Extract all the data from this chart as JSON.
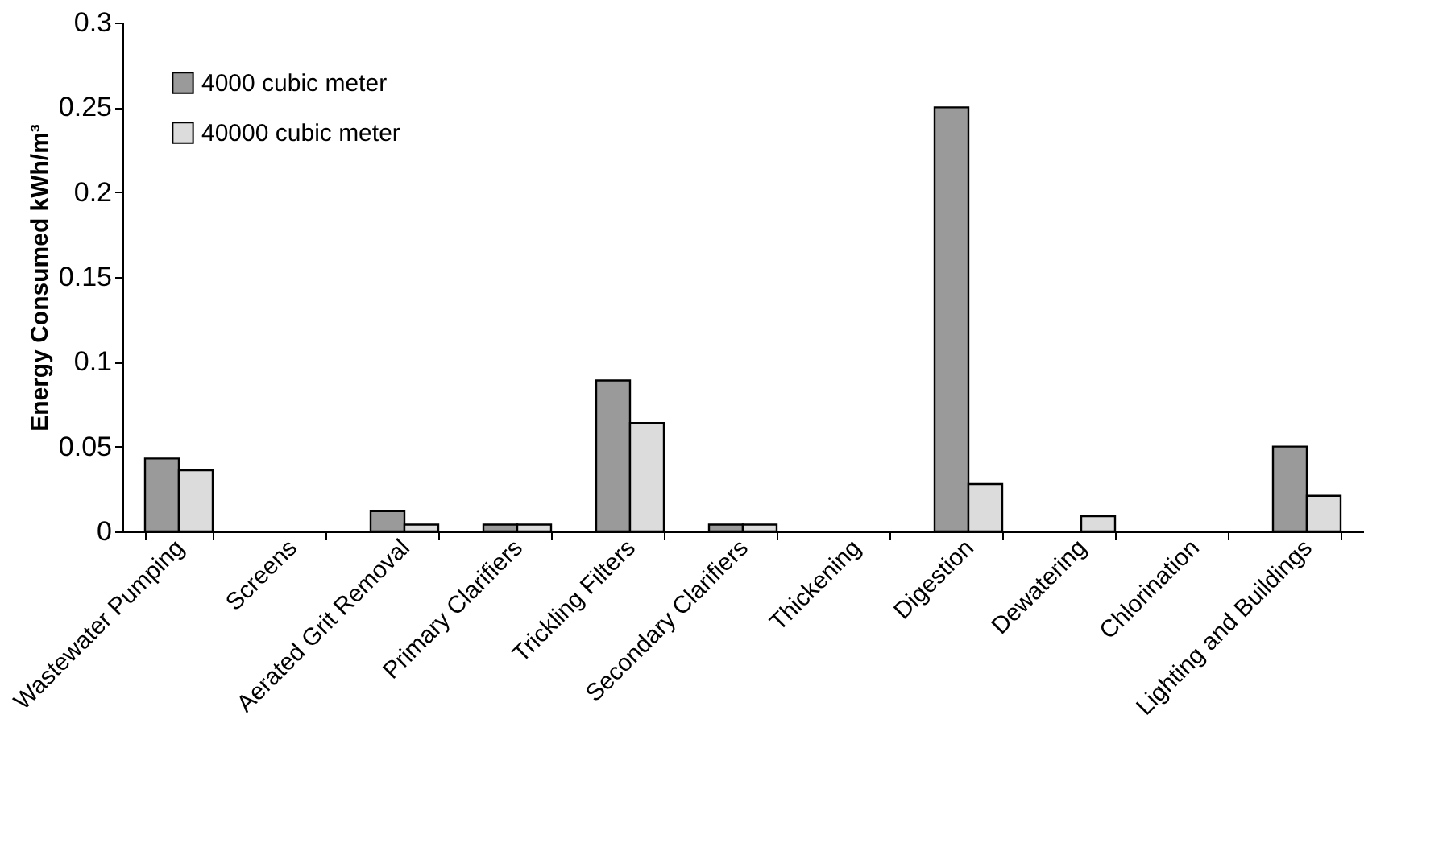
{
  "chart_data": {
    "type": "bar",
    "ylabel": "Energy Consumed kWh/m³",
    "categories": [
      "Wastewater Pumping",
      "Screens",
      "Aerated Grit Removal",
      "Primary Clarifiers",
      "Trickling Filters",
      "Secondary Clarifiers",
      "Thickening",
      "Digestion",
      "Dewatering",
      "Chlorination",
      "Lighting and Buildings"
    ],
    "series": [
      {
        "name": "4000 cubic meter",
        "color": "#9a9a9a",
        "values": [
          0.043,
          0,
          0.012,
          0.004,
          0.089,
          0.004,
          0,
          0.25,
          0,
          0,
          0.05
        ]
      },
      {
        "name": "40000 cubic meter",
        "color": "#dcdcdc",
        "values": [
          0.036,
          0,
          0.004,
          0.004,
          0.064,
          0.004,
          0,
          0.028,
          0.009,
          0,
          0.021
        ]
      }
    ],
    "ylim": [
      0,
      0.3
    ],
    "yticks": [
      0,
      0.05,
      0.1,
      0.15,
      0.2,
      0.25,
      0.3
    ],
    "grid": false,
    "legend": "top left"
  }
}
